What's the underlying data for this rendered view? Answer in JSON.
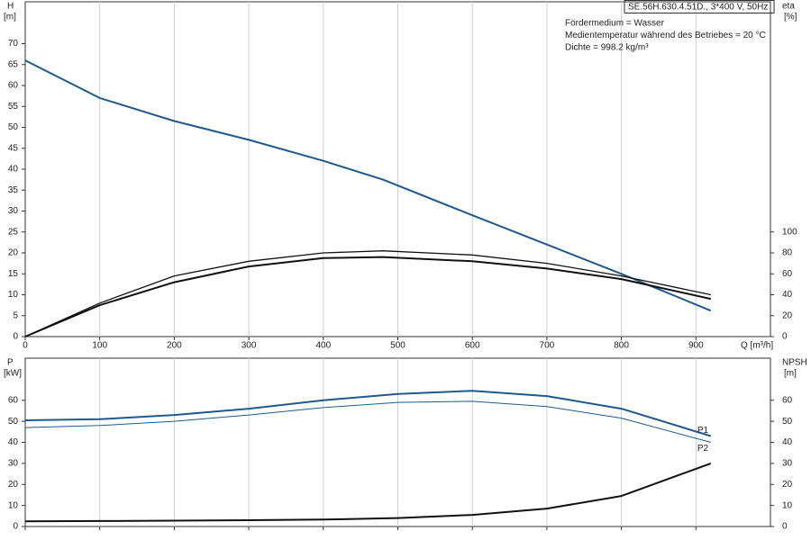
{
  "chart_data": [
    {
      "type": "line",
      "title": "SE.56H.630.4.51D., 3*400 V, 50Hz",
      "notes": [
        "Fördermedium = Wasser",
        "Medientemperatur während des Betriebes = 20 °C",
        "Dichte = 998.2 kg/m³"
      ],
      "y_label": "H",
      "y_unit": "[m]",
      "y2_label": "eta",
      "y2_unit": "[%]",
      "x_label": "Q [m³/h]",
      "x": [
        0,
        100,
        200,
        300,
        400,
        480,
        600,
        700,
        800,
        920
      ],
      "xlim": [
        0,
        1000
      ],
      "xticks": [
        0,
        100,
        200,
        300,
        400,
        500,
        600,
        700,
        800,
        900
      ],
      "ylim": [
        0,
        80
      ],
      "yticks": [
        0,
        5,
        10,
        15,
        20,
        25,
        30,
        35,
        40,
        45,
        50,
        55,
        60,
        65,
        70
      ],
      "y2lim": [
        0,
        320
      ],
      "y2ticks": [
        0,
        20,
        40,
        60,
        80,
        100
      ],
      "grid": "x",
      "series": [
        {
          "color": "#1f5a8e",
          "width": 2,
          "values": [
            66,
            57,
            51.5,
            47,
            42,
            37.5,
            29,
            22,
            15,
            6.2
          ]
        },
        {
          "color": "#111111",
          "width": 1.3,
          "axis": "y2",
          "values": [
            0,
            32,
            58,
            72,
            80,
            82,
            78,
            70,
            58,
            40
          ]
        },
        {
          "color": "#111111",
          "width": 2,
          "axis": "y2",
          "values": [
            0,
            30,
            52,
            67,
            75,
            76,
            72,
            65,
            55,
            36
          ]
        }
      ]
    },
    {
      "type": "line",
      "y_label": "P",
      "y_unit": "[kW]",
      "y2_label": "NPSH",
      "y2_unit": "[m]",
      "x": [
        0,
        100,
        200,
        300,
        400,
        500,
        600,
        700,
        800,
        920
      ],
      "xlim": [
        0,
        1000
      ],
      "xticks": [
        0,
        100,
        200,
        300,
        400,
        500,
        600,
        700,
        800,
        900
      ],
      "ylim": [
        0,
        80
      ],
      "yticks": [
        0,
        10,
        20,
        30,
        40,
        50,
        60
      ],
      "y2lim": [
        0,
        80
      ],
      "y2ticks": [
        0,
        10,
        20,
        30,
        40,
        50,
        60
      ],
      "grid": "x",
      "series": [
        {
          "name": "P1",
          "color": "#1f5a8e",
          "width": 2,
          "values": [
            50.5,
            51,
            53,
            56,
            60,
            63,
            64.5,
            62,
            56,
            43
          ]
        },
        {
          "name": "P2",
          "color": "#1f5a8e",
          "width": 1,
          "values": [
            47,
            48,
            50,
            53,
            56.5,
            59,
            59.5,
            57,
            51.5,
            40
          ]
        },
        {
          "color": "#111111",
          "width": 2,
          "axis": "y2",
          "values": [
            2.5,
            2.6,
            2.8,
            3,
            3.3,
            4,
            5.5,
            8.5,
            14.5,
            30
          ]
        }
      ]
    }
  ]
}
